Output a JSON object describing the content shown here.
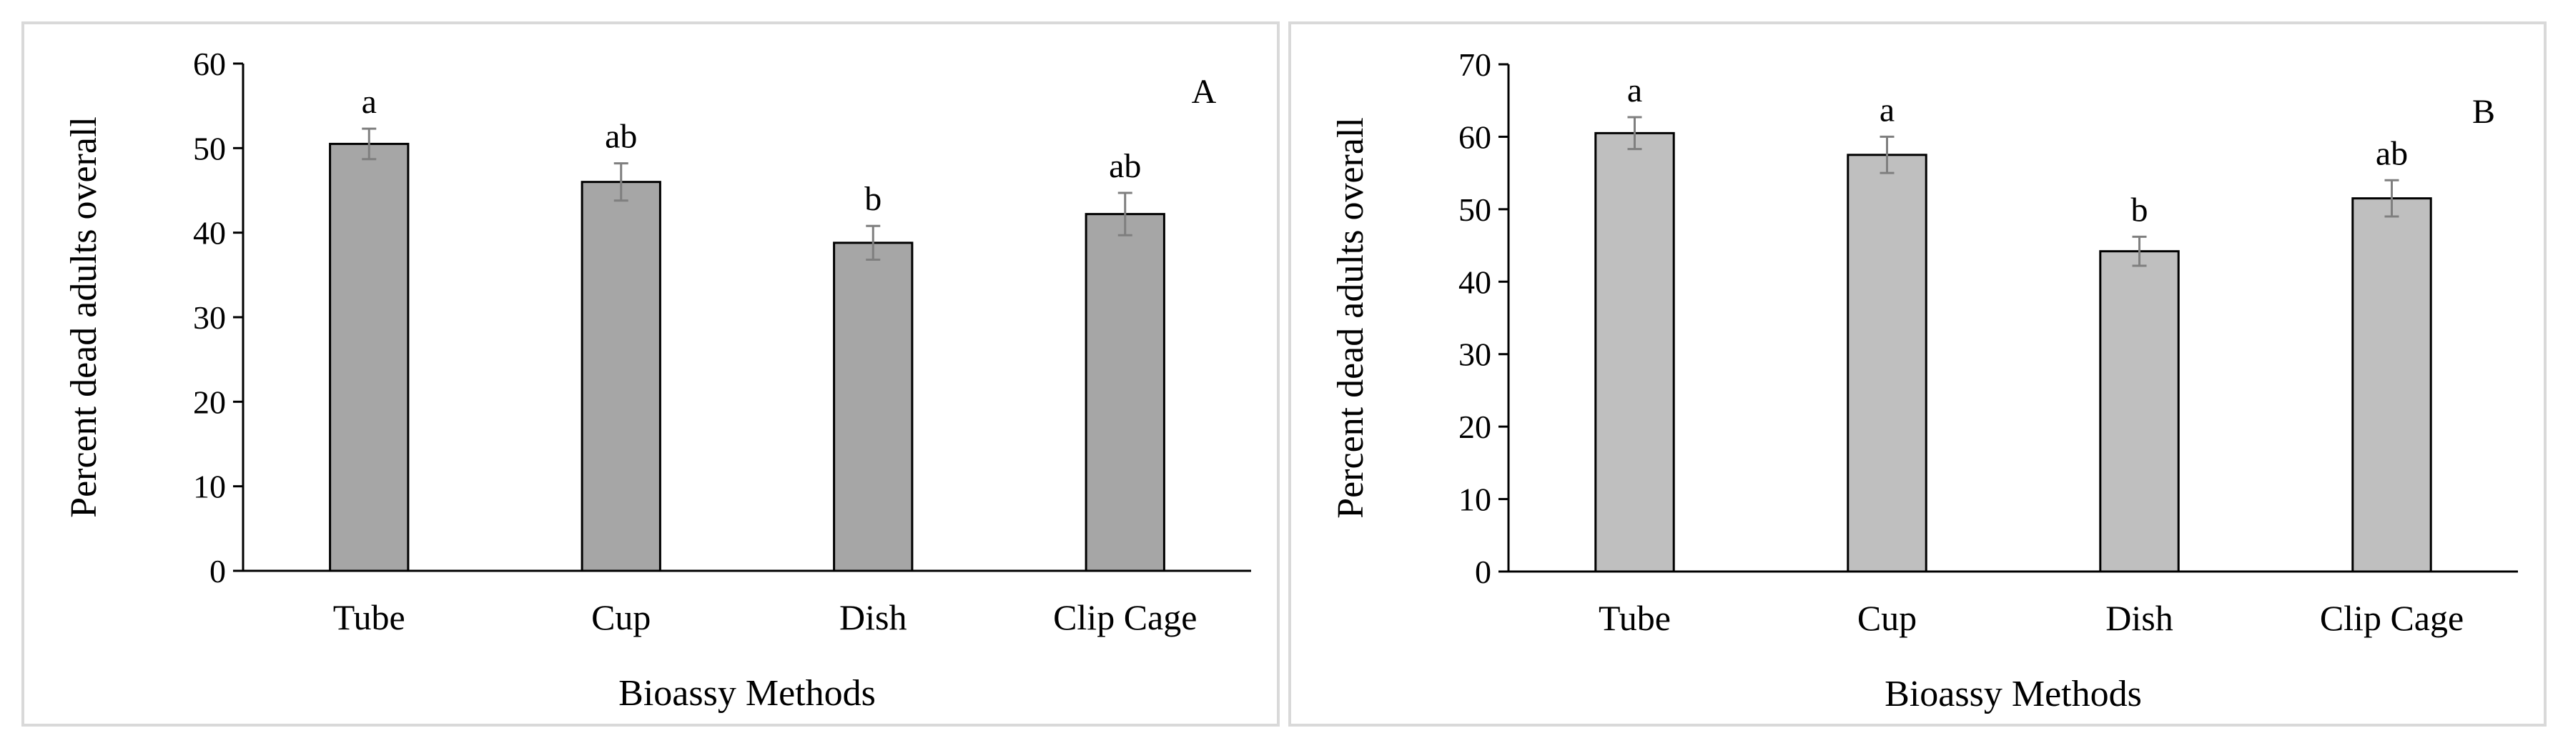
{
  "chart_data": [
    {
      "type": "bar",
      "panel_label": "A",
      "categories": [
        "Tube",
        "Cup",
        "Dish",
        "Clip Cage"
      ],
      "values": [
        50.5,
        46.0,
        38.8,
        42.2
      ],
      "errors": [
        1.8,
        2.2,
        2.0,
        2.5
      ],
      "significance": [
        "a",
        "ab",
        "b",
        "ab"
      ],
      "xlabel": "Bioassy Methods",
      "ylabel": "Percent dead adults overall",
      "ylim": [
        0,
        60
      ],
      "yticks": [
        0,
        10,
        20,
        30,
        40,
        50,
        60
      ],
      "bar_color": "#a6a6a6",
      "grid": false
    },
    {
      "type": "bar",
      "panel_label": "B",
      "categories": [
        "Tube",
        "Cup",
        "Dish",
        "Clip Cage"
      ],
      "values": [
        60.5,
        57.5,
        44.2,
        51.5
      ],
      "errors": [
        2.2,
        2.5,
        2.0,
        2.5
      ],
      "significance": [
        "a",
        "a",
        "b",
        "ab"
      ],
      "xlabel": "Bioassy Methods",
      "ylabel": "Percent dead adults overall",
      "ylim": [
        0,
        70
      ],
      "yticks": [
        0,
        10,
        20,
        30,
        40,
        50,
        60,
        70
      ],
      "bar_color": "#bfbfbf",
      "grid": false
    }
  ]
}
